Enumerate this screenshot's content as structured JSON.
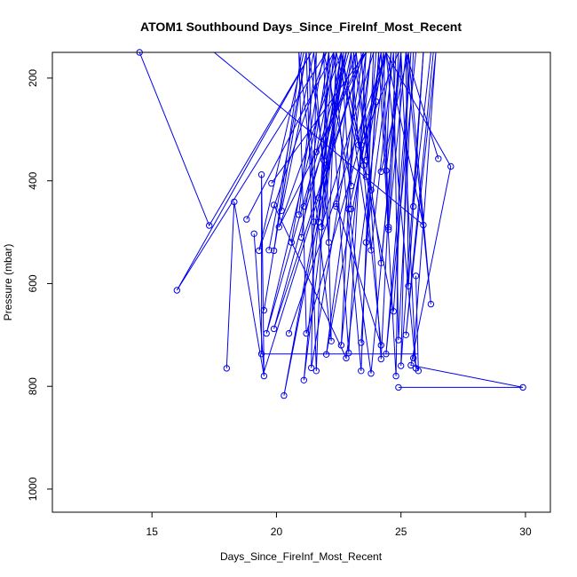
{
  "chart_data": {
    "type": "scatter",
    "title": "ATOM1 Southbound Days_Since_FireInf_Most_Recent",
    "xlabel": "Days_Since_FireInf_Most_Recent",
    "ylabel": "Pressure (mbar)",
    "xlim": [
      11.0,
      31.0
    ],
    "ylim": [
      1045,
      150
    ],
    "y_reversed": true,
    "xticks": [
      15,
      20,
      25,
      30
    ],
    "yticks": [
      200,
      400,
      600,
      800,
      1000
    ],
    "grid": false,
    "legend": "none",
    "color": "#0000ee",
    "segments": [
      [
        [
          14.5,
          150
        ],
        [
          17.3,
          487
        ],
        [
          21.4,
          150
        ],
        [
          16.0,
          613
        ],
        [
          22.0,
          150
        ],
        [
          19.3,
          536
        ],
        [
          21.1,
          150
        ]
      ],
      [
        [
          17.5,
          150
        ],
        [
          25.9,
          486
        ],
        [
          24.4,
          150
        ],
        [
          27.0,
          372
        ],
        [
          25.4,
          759
        ],
        [
          29.9,
          802
        ],
        [
          24.9,
          802
        ]
      ],
      [
        [
          18.0,
          765
        ],
        [
          18.3,
          441
        ],
        [
          19.5,
          780
        ],
        [
          19.4,
          388
        ],
        [
          19.4,
          737
        ],
        [
          25.7,
          737
        ]
      ],
      [
        [
          18.8,
          475
        ],
        [
          22.3,
          150
        ],
        [
          19.6,
          697
        ],
        [
          22.8,
          150
        ],
        [
          20.3,
          818
        ],
        [
          23.0,
          150
        ]
      ],
      [
        [
          19.8,
          405
        ],
        [
          23.6,
          150
        ],
        [
          20.1,
          490
        ],
        [
          22.6,
          150
        ],
        [
          21.8,
          490
        ],
        [
          23.9,
          150
        ]
      ],
      [
        [
          19.9,
          447
        ],
        [
          22.8,
          745
        ],
        [
          24.4,
          150
        ],
        [
          22.9,
          455
        ],
        [
          23.8,
          775
        ],
        [
          25.0,
          150
        ]
      ],
      [
        [
          20.2,
          458
        ],
        [
          21.5,
          150
        ],
        [
          22.1,
          520
        ],
        [
          22.4,
          150
        ],
        [
          23.5,
          370
        ],
        [
          24.2,
          150
        ]
      ],
      [
        [
          20.5,
          697
        ],
        [
          24.4,
          150
        ],
        [
          21.2,
          697
        ],
        [
          20.9,
          150
        ],
        [
          22.2,
          712
        ],
        [
          21.9,
          150
        ]
      ],
      [
        [
          20.6,
          520
        ],
        [
          21.9,
          150
        ],
        [
          23.0,
          410
        ],
        [
          23.1,
          150
        ],
        [
          24.2,
          560
        ],
        [
          25.0,
          150
        ]
      ],
      [
        [
          20.9,
          466
        ],
        [
          21.6,
          150
        ],
        [
          21.4,
          764
        ],
        [
          23.5,
          150
        ],
        [
          21.6,
          344
        ],
        [
          22.4,
          150
        ]
      ],
      [
        [
          21.0,
          510
        ],
        [
          22.1,
          150
        ],
        [
          22.9,
          735
        ],
        [
          23.6,
          150
        ],
        [
          22.0,
          738
        ],
        [
          24.2,
          150
        ]
      ],
      [
        [
          21.1,
          450
        ],
        [
          23.2,
          150
        ],
        [
          23.8,
          418
        ],
        [
          23.4,
          150
        ],
        [
          24.2,
          747
        ],
        [
          24.8,
          150
        ]
      ],
      [
        [
          21.7,
          433
        ],
        [
          22.6,
          150
        ],
        [
          24.7,
          654
        ],
        [
          25.4,
          150
        ],
        [
          24.4,
          737
        ],
        [
          25.6,
          150
        ]
      ],
      [
        [
          22.0,
          375
        ],
        [
          22.7,
          150
        ],
        [
          21.1,
          788
        ],
        [
          22.3,
          150
        ],
        [
          23.4,
          770
        ],
        [
          23.9,
          150
        ]
      ],
      [
        [
          22.4,
          450
        ],
        [
          23.0,
          150
        ],
        [
          23.3,
          330
        ],
        [
          23.8,
          150
        ],
        [
          22.6,
          720
        ],
        [
          23.2,
          150
        ]
      ],
      [
        [
          23.6,
          360
        ],
        [
          24.3,
          150
        ],
        [
          24.5,
          490
        ],
        [
          25.2,
          150
        ],
        [
          25.3,
          605
        ],
        [
          25.9,
          150
        ]
      ],
      [
        [
          21.5,
          480
        ],
        [
          21.3,
          150
        ],
        [
          21.9,
          360
        ],
        [
          22.6,
          150
        ],
        [
          23.6,
          392
        ],
        [
          24.0,
          150
        ]
      ],
      [
        [
          24.0,
          246
        ],
        [
          23.6,
          520
        ],
        [
          24.6,
          150
        ],
        [
          24.4,
          380
        ],
        [
          25.0,
          150
        ]
      ],
      [
        [
          25.6,
          585
        ],
        [
          25.7,
          770
        ],
        [
          25.5,
          745
        ],
        [
          26.4,
          150
        ],
        [
          25.2,
          700
        ],
        [
          26.3,
          150
        ]
      ],
      [
        [
          26.5,
          357
        ],
        [
          25.2,
          150
        ],
        [
          26.2,
          640
        ],
        [
          25.3,
          150
        ]
      ],
      [
        [
          19.1,
          503
        ],
        [
          19.5,
          772
        ],
        [
          23.5,
          150
        ],
        [
          19.9,
          688
        ],
        [
          22.9,
          150
        ]
      ],
      [
        [
          19.5,
          652
        ],
        [
          21.2,
          150
        ],
        [
          19.9,
          536
        ],
        [
          21.0,
          150
        ]
      ],
      [
        [
          19.7,
          535
        ],
        [
          21.2,
          150
        ],
        [
          21.6,
          770
        ],
        [
          22.1,
          150
        ],
        [
          21.7,
          480
        ],
        [
          22.8,
          150
        ]
      ],
      [
        [
          22.4,
          445
        ],
        [
          24.2,
          720
        ],
        [
          23.4,
          330
        ],
        [
          24.9,
          150
        ],
        [
          24.5,
          495
        ],
        [
          24.2,
          150
        ]
      ],
      [
        [
          23.0,
          455
        ],
        [
          22.6,
          150
        ],
        [
          23.8,
          535
        ],
        [
          24.7,
          150
        ],
        [
          24.9,
          710
        ],
        [
          25.5,
          150
        ]
      ],
      [
        [
          24.2,
          382
        ],
        [
          25.3,
          150
        ],
        [
          25.0,
          760
        ],
        [
          25.9,
          150
        ],
        [
          25.5,
          450
        ],
        [
          26.2,
          150
        ]
      ],
      [
        [
          23.4,
          715
        ],
        [
          24.1,
          150
        ],
        [
          24.8,
          780
        ],
        [
          25.0,
          150
        ],
        [
          25.6,
          765
        ],
        [
          24.4,
          150
        ]
      ]
    ],
    "points": [
      [
        14.5,
        150
      ],
      [
        17.3,
        487
      ],
      [
        16.0,
        613
      ],
      [
        18.0,
        765
      ],
      [
        18.3,
        441
      ],
      [
        18.8,
        475
      ],
      [
        19.1,
        503
      ],
      [
        19.3,
        536
      ],
      [
        19.4,
        388
      ],
      [
        19.4,
        737
      ],
      [
        19.5,
        652
      ],
      [
        19.5,
        780
      ],
      [
        19.6,
        697
      ],
      [
        19.7,
        535
      ],
      [
        19.8,
        405
      ],
      [
        19.9,
        447
      ],
      [
        19.9,
        688
      ],
      [
        19.9,
        536
      ],
      [
        20.1,
        490
      ],
      [
        20.2,
        458
      ],
      [
        20.3,
        818
      ],
      [
        20.5,
        697
      ],
      [
        20.6,
        520
      ],
      [
        20.9,
        466
      ],
      [
        21.0,
        510
      ],
      [
        21.1,
        450
      ],
      [
        21.1,
        788
      ],
      [
        21.2,
        697
      ],
      [
        21.4,
        764
      ],
      [
        21.5,
        480
      ],
      [
        21.6,
        344
      ],
      [
        21.6,
        770
      ],
      [
        21.7,
        433
      ],
      [
        21.7,
        480
      ],
      [
        21.8,
        490
      ],
      [
        21.9,
        360
      ],
      [
        22.0,
        375
      ],
      [
        22.0,
        738
      ],
      [
        22.1,
        520
      ],
      [
        22.2,
        712
      ],
      [
        22.4,
        450
      ],
      [
        22.4,
        445
      ],
      [
        22.6,
        720
      ],
      [
        22.8,
        745
      ],
      [
        22.9,
        455
      ],
      [
        22.9,
        735
      ],
      [
        23.0,
        410
      ],
      [
        23.0,
        455
      ],
      [
        23.3,
        330
      ],
      [
        23.4,
        770
      ],
      [
        23.4,
        715
      ],
      [
        23.4,
        330
      ],
      [
        23.5,
        370
      ],
      [
        23.6,
        360
      ],
      [
        23.6,
        392
      ],
      [
        23.6,
        520
      ],
      [
        23.8,
        418
      ],
      [
        23.8,
        775
      ],
      [
        23.8,
        535
      ],
      [
        24.0,
        246
      ],
      [
        24.2,
        560
      ],
      [
        24.2,
        747
      ],
      [
        24.2,
        720
      ],
      [
        24.2,
        382
      ],
      [
        24.4,
        737
      ],
      [
        24.4,
        380
      ],
      [
        24.5,
        490
      ],
      [
        24.5,
        495
      ],
      [
        24.7,
        654
      ],
      [
        24.8,
        780
      ],
      [
        24.9,
        802
      ],
      [
        24.9,
        710
      ],
      [
        25.0,
        760
      ],
      [
        25.2,
        700
      ],
      [
        25.3,
        605
      ],
      [
        25.4,
        759
      ],
      [
        25.5,
        745
      ],
      [
        25.5,
        450
      ],
      [
        25.6,
        585
      ],
      [
        25.6,
        765
      ],
      [
        25.7,
        770
      ],
      [
        25.9,
        486
      ],
      [
        26.2,
        640
      ],
      [
        26.5,
        357
      ],
      [
        27.0,
        372
      ],
      [
        29.9,
        802
      ]
    ]
  }
}
